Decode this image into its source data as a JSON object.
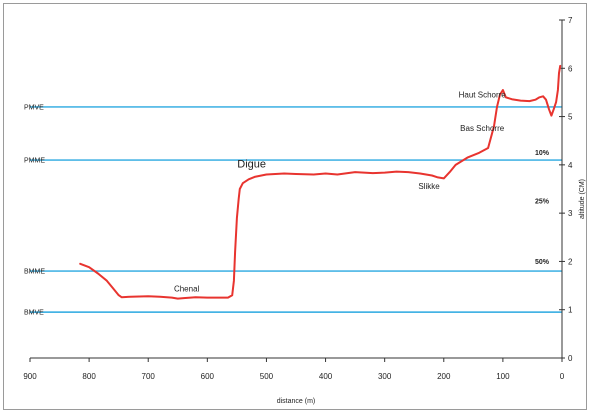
{
  "chart_data": {
    "type": "line",
    "xlabel": "distance (m)",
    "ylabel": "altitude (CM)",
    "xlim": [
      900,
      0
    ],
    "ylim": [
      0,
      7
    ],
    "x_ticks": [
      "900",
      "800",
      "700",
      "600",
      "500",
      "400",
      "300",
      "200",
      "100",
      "0"
    ],
    "y_ticks": [
      "0",
      "1",
      "2",
      "3",
      "4",
      "5",
      "6",
      "7"
    ],
    "grid": false,
    "line_color": "#e8342f",
    "ref_line_color": "#29a8e0",
    "reference_lines": [
      {
        "label": "PMVE",
        "y": 5.2
      },
      {
        "label": "PMME",
        "y": 4.1
      },
      {
        "label": "BMME",
        "y": 1.8
      },
      {
        "label": "BMVE",
        "y": 0.95
      }
    ],
    "annotations": [
      {
        "text": "Haut Schorre",
        "x": 135,
        "y": 5.4,
        "style": "normal"
      },
      {
        "text": "Bas Schorre",
        "x": 135,
        "y": 4.7,
        "style": "normal"
      },
      {
        "text": "Digue",
        "x": 525,
        "y": 3.95,
        "style": "big"
      },
      {
        "text": "Slikke",
        "x": 225,
        "y": 3.5,
        "style": "normal"
      },
      {
        "text": "Chenal",
        "x": 635,
        "y": 1.38,
        "style": "normal"
      }
    ],
    "percent_labels": [
      {
        "text": "10%",
        "y": 4.2
      },
      {
        "text": "25%",
        "y": 3.2
      },
      {
        "text": "50%",
        "y": 1.95
      }
    ],
    "series": [
      {
        "x": [
          815,
          800,
          785,
          770,
          760,
          750,
          745,
          730,
          700,
          680,
          660,
          650,
          640,
          620,
          600,
          580,
          565,
          558,
          555,
          553,
          550,
          547,
          545,
          540,
          530,
          520,
          500,
          470,
          450,
          420,
          400,
          380,
          350,
          320,
          300,
          280,
          260,
          240,
          220,
          210,
          200,
          190,
          180,
          160,
          140,
          125,
          115,
          110,
          105,
          100,
          95,
          85,
          70,
          55,
          45,
          38,
          32,
          27,
          22,
          18,
          14,
          10,
          7,
          5,
          3
        ],
        "y": [
          1.95,
          1.88,
          1.75,
          1.6,
          1.45,
          1.3,
          1.26,
          1.27,
          1.28,
          1.27,
          1.25,
          1.23,
          1.24,
          1.26,
          1.25,
          1.25,
          1.25,
          1.3,
          1.6,
          2.2,
          2.9,
          3.3,
          3.5,
          3.62,
          3.7,
          3.75,
          3.8,
          3.82,
          3.81,
          3.8,
          3.82,
          3.8,
          3.85,
          3.83,
          3.84,
          3.86,
          3.85,
          3.82,
          3.78,
          3.74,
          3.72,
          3.85,
          4.0,
          4.15,
          4.25,
          4.35,
          4.8,
          5.2,
          5.45,
          5.55,
          5.4,
          5.36,
          5.33,
          5.32,
          5.35,
          5.4,
          5.42,
          5.35,
          5.15,
          5.02,
          5.15,
          5.3,
          5.55,
          5.9,
          6.05
        ]
      }
    ]
  }
}
